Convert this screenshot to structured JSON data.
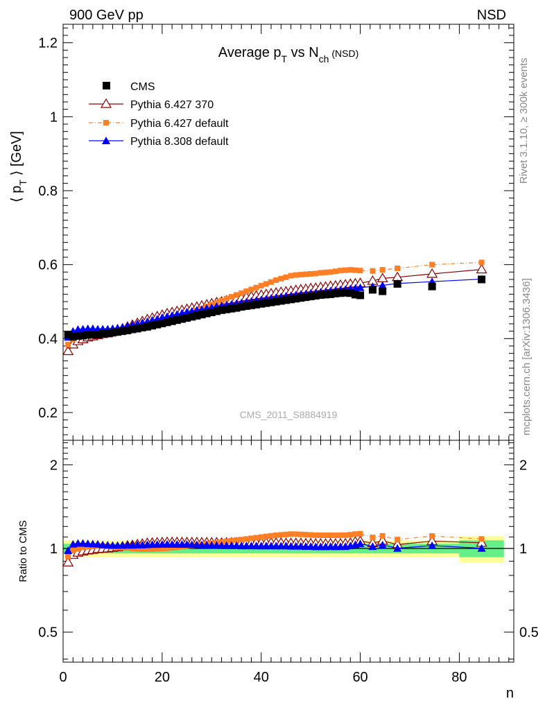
{
  "header": {
    "left": "900 GeV pp",
    "right": "NSD"
  },
  "side_labels": {
    "rivet": "Rivet 3.1.10, ≥ 300k events",
    "mcplots": "mcplots.cern.ch [arXiv:1306.3436]"
  },
  "watermark": "CMS_2011_S8884919",
  "chart_data": [
    {
      "panel": "main",
      "type": "scatter",
      "title": {
        "prefix": "Average p",
        "sub1": "T",
        "mid": " vs N",
        "sub2": "ch",
        "suffix": " (NSD)"
      },
      "ylabel": {
        "pre": "⟨ p",
        "sub": "T",
        "post": " ⟩ [GeV]"
      },
      "xlabel": "n",
      "xlim": [
        0,
        91
      ],
      "ylim": [
        0.125,
        1.25
      ],
      "yticks": [
        "0.2",
        "0.4",
        "0.6",
        "0.8",
        "1",
        "1.2"
      ],
      "ytick_values": [
        0.2,
        0.4,
        0.6,
        0.8,
        1.0,
        1.2
      ],
      "legend_position": "top-left",
      "legend": [
        "CMS",
        "Pythia 6.427 370",
        "Pythia 6.427 default",
        "Pythia 8.308 default"
      ],
      "series": [
        {
          "name": "CMS",
          "color": "#000000",
          "marker": "square",
          "x": [
            1,
            2,
            3,
            4,
            5,
            6,
            7,
            8,
            9,
            10,
            11,
            12,
            13,
            14,
            15,
            16,
            17,
            18,
            19,
            20,
            21,
            22,
            23,
            24,
            25,
            26,
            27,
            28,
            29,
            30,
            31,
            32,
            33,
            34,
            35,
            36,
            37,
            38,
            39,
            40,
            41,
            42,
            43,
            44,
            45,
            46,
            47,
            48,
            49,
            50,
            51,
            52,
            53,
            54,
            55,
            56,
            57,
            58,
            59,
            60,
            62.5,
            64.5,
            67.5,
            74.5,
            84.5
          ],
          "y": [
            0.411,
            0.405,
            0.407,
            0.408,
            0.41,
            0.411,
            0.411,
            0.413,
            0.414,
            0.416,
            0.418,
            0.42,
            0.422,
            0.425,
            0.427,
            0.43,
            0.432,
            0.435,
            0.438,
            0.441,
            0.444,
            0.447,
            0.45,
            0.453,
            0.456,
            0.459,
            0.462,
            0.465,
            0.468,
            0.471,
            0.474,
            0.477,
            0.479,
            0.481,
            0.483,
            0.486,
            0.488,
            0.49,
            0.492,
            0.494,
            0.496,
            0.498,
            0.5,
            0.502,
            0.504,
            0.506,
            0.508,
            0.51,
            0.512,
            0.514,
            0.516,
            0.518,
            0.519,
            0.52,
            0.522,
            0.523,
            0.524,
            0.523,
            0.519,
            0.517,
            0.532,
            0.528,
            0.548,
            0.541,
            0.56
          ]
        },
        {
          "name": "Pythia 6.427 370",
          "color": "#8b0000",
          "marker": "triangle-open",
          "x": [
            1,
            2,
            3,
            4,
            5,
            6,
            7,
            8,
            9,
            10,
            11,
            12,
            13,
            14,
            15,
            16,
            17,
            18,
            19,
            20,
            21,
            22,
            23,
            24,
            25,
            26,
            27,
            28,
            29,
            30,
            31,
            32,
            33,
            34,
            35,
            36,
            37,
            38,
            39,
            40,
            41,
            42,
            43,
            44,
            45,
            46,
            47,
            48,
            49,
            50,
            51,
            52,
            53,
            54,
            55,
            56,
            57,
            58,
            59,
            60,
            62.5,
            64.5,
            67.5,
            74.5,
            84.5
          ],
          "y": [
            0.366,
            0.384,
            0.393,
            0.398,
            0.403,
            0.406,
            0.409,
            0.412,
            0.414,
            0.418,
            0.422,
            0.427,
            0.432,
            0.437,
            0.442,
            0.447,
            0.452,
            0.456,
            0.46,
            0.464,
            0.468,
            0.471,
            0.474,
            0.477,
            0.48,
            0.483,
            0.486,
            0.489,
            0.492,
            0.495,
            0.498,
            0.5,
            0.503,
            0.505,
            0.507,
            0.51,
            0.512,
            0.514,
            0.516,
            0.518,
            0.52,
            0.522,
            0.524,
            0.526,
            0.527,
            0.529,
            0.531,
            0.533,
            0.534,
            0.536,
            0.537,
            0.539,
            0.54,
            0.542,
            0.543,
            0.545,
            0.546,
            0.548,
            0.549,
            0.55,
            0.556,
            0.563,
            0.566,
            0.575,
            0.587
          ]
        },
        {
          "name": "Pythia 6.427 default",
          "color": "#ff7f27",
          "marker": "square-small",
          "x": [
            1,
            2,
            3,
            4,
            5,
            6,
            7,
            8,
            9,
            10,
            11,
            12,
            13,
            14,
            15,
            16,
            17,
            18,
            19,
            20,
            21,
            22,
            23,
            24,
            25,
            26,
            27,
            28,
            29,
            30,
            31,
            32,
            33,
            34,
            35,
            36,
            37,
            38,
            39,
            40,
            41,
            42,
            43,
            44,
            45,
            46,
            47,
            48,
            49,
            50,
            51,
            52,
            53,
            54,
            55,
            56,
            57,
            58,
            59,
            60,
            62.5,
            64.5,
            67.5,
            74.5,
            84.5
          ],
          "y": [
            0.384,
            0.398,
            0.406,
            0.412,
            0.416,
            0.418,
            0.42,
            0.421,
            0.421,
            0.422,
            0.422,
            0.423,
            0.424,
            0.425,
            0.426,
            0.428,
            0.43,
            0.433,
            0.437,
            0.441,
            0.445,
            0.45,
            0.455,
            0.46,
            0.465,
            0.47,
            0.476,
            0.481,
            0.487,
            0.492,
            0.497,
            0.503,
            0.508,
            0.513,
            0.518,
            0.523,
            0.528,
            0.533,
            0.538,
            0.543,
            0.548,
            0.553,
            0.558,
            0.562,
            0.566,
            0.57,
            0.572,
            0.573,
            0.574,
            0.575,
            0.576,
            0.578,
            0.579,
            0.58,
            0.582,
            0.584,
            0.585,
            0.586,
            0.585,
            0.584,
            0.583,
            0.586,
            0.59,
            0.6,
            0.606
          ]
        },
        {
          "name": "Pythia 8.308 default",
          "color": "#0000ff",
          "marker": "triangle",
          "x": [
            1,
            2,
            3,
            4,
            5,
            6,
            7,
            8,
            9,
            10,
            11,
            12,
            13,
            14,
            15,
            16,
            17,
            18,
            19,
            20,
            21,
            22,
            23,
            24,
            25,
            26,
            27,
            28,
            29,
            30,
            31,
            32,
            33,
            34,
            35,
            36,
            37,
            38,
            39,
            40,
            41,
            42,
            43,
            44,
            45,
            46,
            47,
            48,
            49,
            50,
            51,
            52,
            53,
            54,
            55,
            56,
            57,
            58,
            59,
            60,
            62.5,
            64.5,
            67.5,
            74.5,
            84.5
          ],
          "y": [
            0.404,
            0.42,
            0.425,
            0.426,
            0.427,
            0.427,
            0.426,
            0.426,
            0.426,
            0.427,
            0.429,
            0.431,
            0.434,
            0.437,
            0.44,
            0.443,
            0.446,
            0.45,
            0.453,
            0.457,
            0.46,
            0.463,
            0.466,
            0.469,
            0.472,
            0.474,
            0.477,
            0.479,
            0.482,
            0.484,
            0.487,
            0.489,
            0.491,
            0.493,
            0.495,
            0.497,
            0.499,
            0.501,
            0.503,
            0.505,
            0.507,
            0.509,
            0.511,
            0.513,
            0.515,
            0.516,
            0.518,
            0.52,
            0.521,
            0.523,
            0.524,
            0.526,
            0.527,
            0.529,
            0.53,
            0.532,
            0.533,
            0.535,
            0.536,
            0.538,
            0.541,
            0.544,
            0.549,
            0.554,
            0.561
          ]
        }
      ]
    },
    {
      "panel": "ratio",
      "type": "scatter",
      "ylabel": "Ratio to CMS",
      "xlabel": "n",
      "xlim": [
        0,
        91
      ],
      "ylim": [
        0.39,
        2.45
      ],
      "yscale": "log",
      "xticks": [
        "0",
        "20",
        "40",
        "60",
        "80"
      ],
      "xtick_values": [
        0,
        20,
        40,
        60,
        80
      ],
      "yticks": [
        "0.5",
        "1",
        "2"
      ],
      "ytick_values": [
        0.5,
        1,
        2
      ],
      "bands": [
        {
          "x0": 0,
          "x1": 80,
          "lo": 0.93,
          "hi": 1.07,
          "color": "#ffff99"
        },
        {
          "x0": 0,
          "x1": 80,
          "lo": 0.96,
          "hi": 1.04,
          "color": "#66ee88"
        },
        {
          "x0": 80,
          "x1": 89,
          "lo": 0.89,
          "hi": 1.11,
          "color": "#ffff99"
        },
        {
          "x0": 80,
          "x1": 89,
          "lo": 0.93,
          "hi": 1.07,
          "color": "#66ee88"
        }
      ],
      "reference": 1.0,
      "series_from_main": true
    }
  ]
}
